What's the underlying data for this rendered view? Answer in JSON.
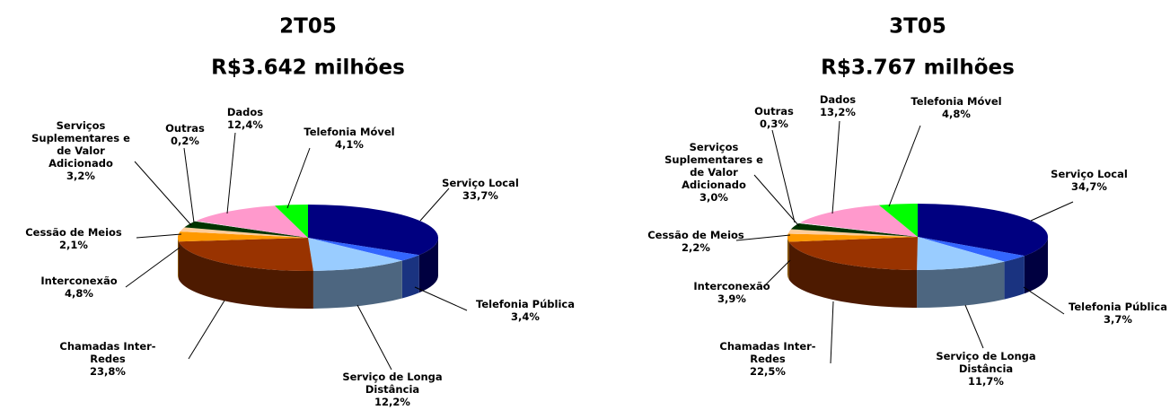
{
  "chart_data": [
    {
      "type": "pie",
      "title": "2T05",
      "subtitle": "R$3.642 milhões",
      "categories": [
        "Serviço Local",
        "Telefonia Pública",
        "Serviço de Longa Distância",
        "Chamadas Inter-Redes",
        "Interconexão",
        "Cessão de Meios",
        "Serviços Suplementares e de Valor Adicionado",
        "Outras",
        "Dados",
        "Telefonia Móvel"
      ],
      "values": [
        33.7,
        3.4,
        12.2,
        23.8,
        4.8,
        2.1,
        3.2,
        0.2,
        12.4,
        4.1
      ],
      "value_labels": [
        "33,7%",
        "3,4%",
        "12,2%",
        "23,8%",
        "4,8%",
        "2,1%",
        "3,2%",
        "0,2%",
        "12,4%",
        "4,1%"
      ],
      "colors": [
        "#000080",
        "#3366ff",
        "#99ccff",
        "#993300",
        "#ff9900",
        "#ffcc99",
        "#003300",
        "#ffffff",
        "#ff99cc",
        "#00ff00"
      ]
    },
    {
      "type": "pie",
      "title": "3T05",
      "subtitle": "R$3.767 milhões",
      "categories": [
        "Serviço Local",
        "Telefonia Pública",
        "Serviço de Longa Distância",
        "Chamadas Inter-Redes",
        "Interconexão",
        "Cessão de Meios",
        "Serviços Suplementares e de Valor Adicionado",
        "Outras",
        "Dados",
        "Telefonia Móvel"
      ],
      "values": [
        34.7,
        3.7,
        11.7,
        22.5,
        3.9,
        2.2,
        3.0,
        0.3,
        13.2,
        4.8
      ],
      "value_labels": [
        "34,7%",
        "3,7%",
        "11,7%",
        "22,5%",
        "3,9%",
        "2,2%",
        "3,0%",
        "0,3%",
        "13,2%",
        "4,8%"
      ],
      "colors": [
        "#000080",
        "#3366ff",
        "#99ccff",
        "#993300",
        "#ff9900",
        "#ffcc99",
        "#003300",
        "#ffffff",
        "#ff99cc",
        "#00ff00"
      ]
    }
  ]
}
